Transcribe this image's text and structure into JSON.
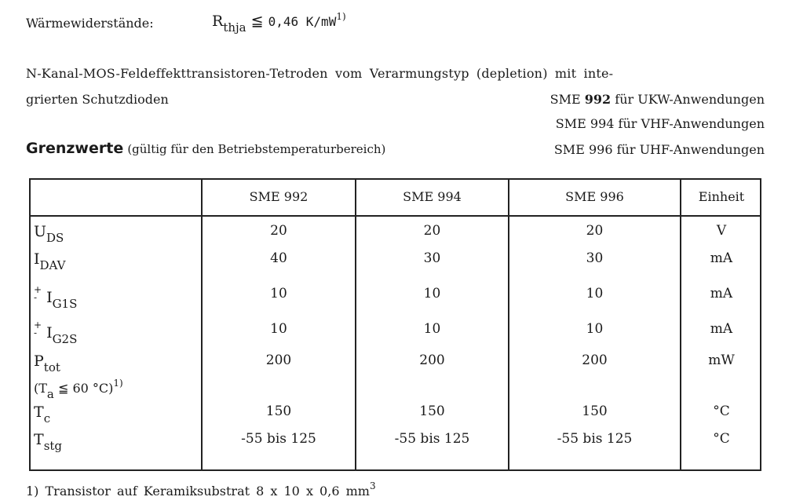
{
  "thermal": {
    "label": "Wärmewiderstände:",
    "symbol": "R",
    "symbol_sub": "thja",
    "relation": "≦",
    "value": "0,46 K/mW",
    "footnote_ref": "1)"
  },
  "description": {
    "line1": "N-Kanal-MOS-Feldeffekttransistoren-Tetroden vom Verarmungstyp (depletion) mit inte-",
    "line2": "grierten Schutzdioden"
  },
  "applications": [
    {
      "prefix": "SME",
      "number": "992",
      "text": "für UKW-Anwendungen"
    },
    {
      "prefix": "SME",
      "number": "994",
      "text": "für VHF-Anwendungen"
    },
    {
      "prefix": "SME",
      "number": "996",
      "text": "für UHF-Anwendungen"
    }
  ],
  "section": {
    "title": "Grenzwerte",
    "subtitle": "(gültig für den Betriebstemperaturbereich)"
  },
  "table": {
    "headers": [
      "",
      "SME 992",
      "SME 994",
      "SME 996",
      "Einheit"
    ],
    "rows": [
      {
        "sym": "U",
        "sub": "DS",
        "pm": "",
        "values": [
          "20",
          "20",
          "20"
        ],
        "unit": "V"
      },
      {
        "sym": "I",
        "sub": "DAV",
        "pm": "",
        "values": [
          "40",
          "30",
          "30"
        ],
        "unit": "mA"
      },
      {
        "sym": "I",
        "sub": "G1S",
        "pm": "+\n-",
        "values": [
          "10",
          "10",
          "10"
        ],
        "unit": "mA"
      },
      {
        "sym": "I",
        "sub": "G2S",
        "pm": "+\n-",
        "values": [
          "10",
          "10",
          "10"
        ],
        "unit": "mA"
      },
      {
        "sym": "P",
        "sub": "tot",
        "pm": "",
        "values": [
          "200",
          "200",
          "200"
        ],
        "unit": "mW",
        "condition": {
          "open": "(T",
          "sub": "a",
          "rest": " ≦ 60 °C)",
          "ref": "1)"
        }
      },
      {
        "sym": "T",
        "sub": "c",
        "pm": "",
        "values": [
          "150",
          "150",
          "150"
        ],
        "unit": "°C"
      },
      {
        "sym": "T",
        "sub": "stg",
        "pm": "",
        "values": [
          "-55 bis 125",
          "-55 bis 125",
          "-55 bis 125"
        ],
        "unit": "°C"
      }
    ]
  },
  "footnote": {
    "text": "1) Transistor auf Keramiksubstrat 8 x 10 x 0,6 mm",
    "sup": "3"
  }
}
